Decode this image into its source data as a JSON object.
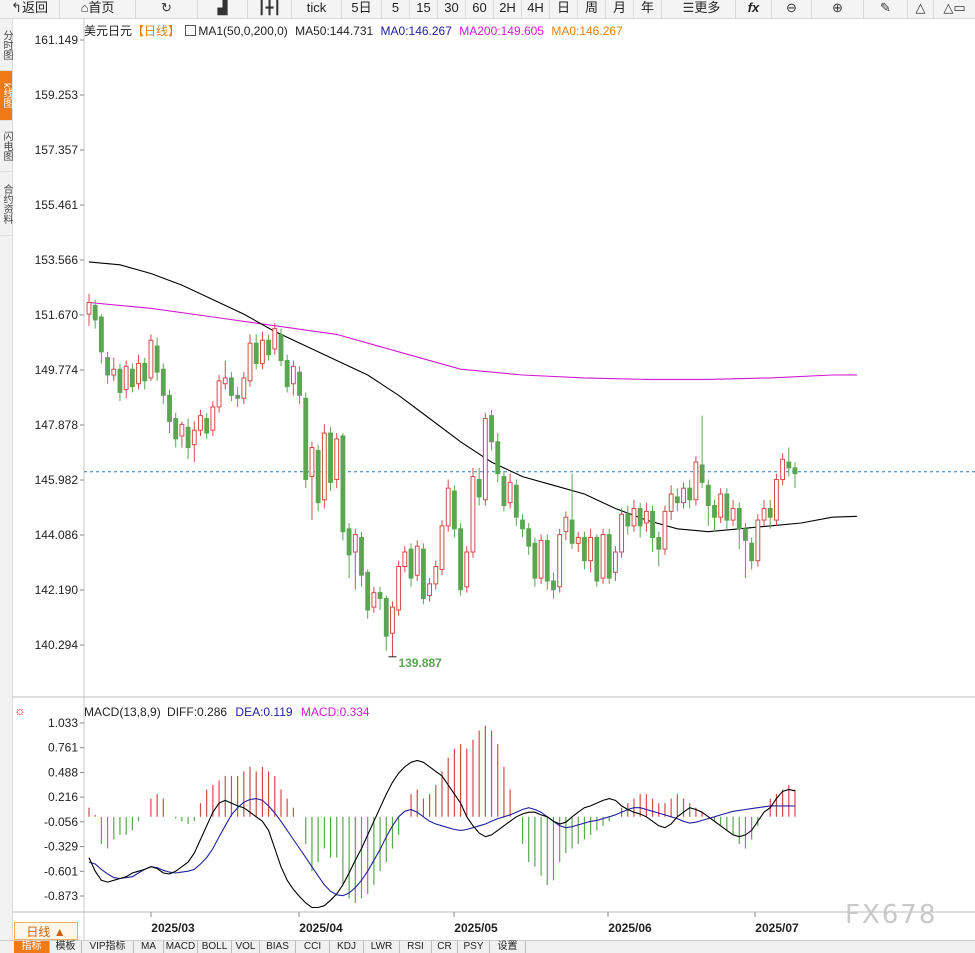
{
  "toolbar": {
    "back": "返回",
    "home": "首页",
    "tick": "tick",
    "periods": [
      "5日",
      "5",
      "15",
      "30",
      "60",
      "2H",
      "4H",
      "日",
      "周",
      "月",
      "年"
    ],
    "more": "更多",
    "fx": "fx"
  },
  "left_tabs": [
    {
      "label": "分时图",
      "active": false
    },
    {
      "label": "k线图",
      "active": true
    },
    {
      "label": "闪电图",
      "active": false
    },
    {
      "label": "合约资料",
      "active": false
    }
  ],
  "legend": {
    "name": "美元日元",
    "period": "【日线】",
    "ma_head": "MA1(50,0,200,0)",
    "ma50": "MA50:144.731",
    "ma0a": "MA0:146.267",
    "ma200": "MA200:149.605",
    "ma0b": "MA0:146.267"
  },
  "macd_legend": {
    "head": "MACD(13,8,9)",
    "diff": "DIFF:0.286",
    "dea": "DEA:0.119",
    "macd": "MACD:0.334"
  },
  "low_label": "139.887",
  "period_button": "日线 ▲",
  "bottom_tabs": [
    "指标",
    "模板",
    "VIP指标",
    "MA",
    "MACD",
    "BOLL",
    "VOL",
    "BIAS",
    "CCI",
    "KDJ",
    "LWR",
    "RSI",
    "CR",
    "PSY",
    "设置"
  ],
  "watermark": "FX678",
  "colors": {
    "up": "#d24b4b",
    "down": "#5aa651",
    "ma50": "#000000",
    "ma200": "#d21ad2",
    "ref": "#2a7fb0",
    "dea": "#2020a0"
  },
  "chart_data": [
    {
      "type": "candlestick",
      "yticks": [
        "161.149",
        "159.253",
        "157.357",
        "155.461",
        "153.566",
        "151.670",
        "149.774",
        "147.878",
        "145.982",
        "144.086",
        "142.190",
        "140.294"
      ],
      "ylim": [
        139.2,
        161.9
      ],
      "xlabels": [
        "2025/03",
        "2025/04",
        "2025/05",
        "2025/06",
        "2025/07"
      ],
      "reference_line": 146.267,
      "low": 139.887,
      "ma50": [
        [
          0,
          153.5
        ],
        [
          5,
          153.4
        ],
        [
          10,
          153.1
        ],
        [
          15,
          152.7
        ],
        [
          20,
          152.2
        ],
        [
          25,
          151.7
        ],
        [
          30,
          151.1
        ],
        [
          35,
          150.6
        ],
        [
          40,
          150.1
        ],
        [
          45,
          149.6
        ],
        [
          50,
          148.9
        ],
        [
          55,
          148.1
        ],
        [
          60,
          147.3
        ],
        [
          65,
          146.6
        ],
        [
          70,
          146.1
        ],
        [
          75,
          145.8
        ],
        [
          80,
          145.5
        ],
        [
          85,
          145.0
        ],
        [
          90,
          144.6
        ],
        [
          95,
          144.3
        ],
        [
          100,
          144.2
        ],
        [
          105,
          144.3
        ],
        [
          110,
          144.4
        ],
        [
          115,
          144.5
        ],
        [
          120,
          144.7
        ],
        [
          124,
          144.73
        ]
      ],
      "ma200": [
        [
          0,
          152.1
        ],
        [
          10,
          151.9
        ],
        [
          20,
          151.6
        ],
        [
          30,
          151.3
        ],
        [
          40,
          151.0
        ],
        [
          50,
          150.4
        ],
        [
          60,
          149.8
        ],
        [
          70,
          149.6
        ],
        [
          80,
          149.5
        ],
        [
          90,
          149.45
        ],
        [
          100,
          149.45
        ],
        [
          110,
          149.5
        ],
        [
          120,
          149.6
        ],
        [
          124,
          149.605
        ]
      ],
      "candles": [
        [
          151.7,
          152.1,
          152.4,
          151.3
        ],
        [
          152.0,
          151.5,
          152.2,
          151.2
        ],
        [
          151.6,
          150.4,
          151.7,
          150.0
        ],
        [
          150.2,
          149.6,
          150.4,
          149.3
        ],
        [
          149.6,
          149.8,
          150.2,
          149.4
        ],
        [
          149.8,
          149.0,
          150.0,
          148.7
        ],
        [
          149.1,
          149.9,
          150.1,
          148.8
        ],
        [
          149.8,
          149.2,
          150.0,
          149.0
        ],
        [
          149.3,
          150.0,
          150.3,
          149.1
        ],
        [
          150.0,
          149.4,
          150.2,
          149.1
        ],
        [
          149.5,
          150.8,
          151.0,
          149.4
        ],
        [
          150.6,
          149.7,
          150.9,
          149.4
        ],
        [
          149.8,
          148.9,
          150.0,
          148.6
        ],
        [
          148.9,
          148.0,
          149.1,
          147.6
        ],
        [
          148.1,
          147.4,
          148.3,
          147.1
        ],
        [
          147.5,
          147.9,
          148.0,
          147.1
        ],
        [
          147.8,
          147.1,
          148.1,
          146.7
        ],
        [
          147.2,
          147.7,
          148.0,
          146.6
        ],
        [
          147.7,
          148.2,
          148.4,
          147.5
        ],
        [
          148.1,
          147.6,
          148.3,
          147.4
        ],
        [
          147.7,
          148.5,
          148.7,
          147.5
        ],
        [
          148.5,
          149.4,
          149.6,
          148.3
        ],
        [
          149.3,
          149.5,
          150.1,
          149.1
        ],
        [
          149.5,
          148.9,
          149.7,
          148.7
        ],
        [
          148.9,
          148.8,
          149.2,
          148.5
        ],
        [
          148.8,
          149.5,
          149.7,
          148.6
        ],
        [
          149.4,
          150.7,
          151.0,
          149.2
        ],
        [
          150.7,
          150.0,
          151.0,
          149.8
        ],
        [
          150.0,
          150.8,
          151.1,
          149.8
        ],
        [
          150.8,
          150.3,
          151.0,
          150.1
        ],
        [
          150.5,
          151.2,
          151.4,
          150.3
        ],
        [
          151.0,
          150.1,
          151.2,
          149.9
        ],
        [
          150.1,
          149.2,
          150.3,
          149.0
        ],
        [
          149.3,
          149.9,
          150.1,
          148.9
        ],
        [
          149.7,
          148.9,
          149.9,
          148.6
        ],
        [
          148.8,
          146.0,
          149.0,
          145.7
        ],
        [
          146.1,
          147.1,
          147.3,
          144.6
        ],
        [
          147.0,
          145.2,
          147.2,
          144.9
        ],
        [
          145.3,
          147.6,
          147.9,
          145.0
        ],
        [
          147.6,
          145.9,
          147.8,
          145.6
        ],
        [
          146.0,
          147.4,
          147.6,
          145.7
        ],
        [
          147.5,
          144.2,
          147.6,
          143.9
        ],
        [
          144.3,
          143.4,
          144.5,
          142.6
        ],
        [
          143.5,
          144.1,
          144.3,
          142.2
        ],
        [
          144.0,
          142.7,
          144.2,
          142.3
        ],
        [
          142.8,
          141.5,
          142.9,
          141.2
        ],
        [
          141.6,
          142.1,
          142.3,
          141.4
        ],
        [
          142.1,
          141.9,
          142.3,
          141.5
        ],
        [
          141.9,
          140.6,
          142.0,
          140.1
        ],
        [
          140.7,
          141.6,
          141.8,
          139.887
        ],
        [
          141.5,
          143.0,
          143.2,
          141.3
        ],
        [
          143.0,
          143.5,
          143.7,
          142.8
        ],
        [
          143.6,
          142.6,
          143.8,
          142.3
        ],
        [
          142.7,
          143.7,
          143.9,
          142.5
        ],
        [
          143.6,
          141.9,
          143.8,
          141.7
        ],
        [
          142.0,
          142.4,
          142.6,
          141.8
        ],
        [
          142.4,
          143.0,
          143.2,
          142.2
        ],
        [
          142.9,
          144.4,
          144.6,
          142.7
        ],
        [
          144.4,
          145.7,
          146.0,
          144.2
        ],
        [
          145.6,
          144.3,
          145.8,
          144.0
        ],
        [
          144.3,
          142.2,
          144.5,
          142.0
        ],
        [
          142.3,
          143.5,
          143.7,
          142.1
        ],
        [
          143.5,
          146.1,
          146.4,
          143.3
        ],
        [
          146.0,
          145.4,
          146.4,
          145.1
        ],
        [
          145.3,
          148.1,
          148.3,
          145.1
        ],
        [
          148.2,
          147.3,
          148.4,
          147.0
        ],
        [
          147.3,
          146.2,
          147.6,
          145.9
        ],
        [
          146.1,
          145.1,
          146.3,
          144.9
        ],
        [
          145.2,
          145.9,
          146.2,
          145.0
        ],
        [
          145.8,
          144.7,
          146.0,
          144.4
        ],
        [
          144.6,
          144.3,
          144.8,
          144.0
        ],
        [
          144.3,
          143.7,
          144.5,
          143.4
        ],
        [
          143.8,
          142.6,
          144.0,
          142.3
        ],
        [
          142.6,
          143.9,
          144.1,
          142.4
        ],
        [
          143.9,
          142.5,
          144.1,
          142.2
        ],
        [
          142.5,
          142.2,
          142.8,
          141.9
        ],
        [
          142.3,
          144.1,
          144.3,
          142.1
        ],
        [
          144.2,
          144.7,
          144.9,
          143.9
        ],
        [
          144.6,
          143.8,
          146.2,
          143.6
        ],
        [
          143.8,
          144.0,
          144.2,
          143.5
        ],
        [
          144.0,
          143.2,
          144.2,
          142.9
        ],
        [
          143.2,
          144.0,
          144.3,
          142.8
        ],
        [
          144.0,
          142.5,
          144.1,
          142.3
        ],
        [
          142.6,
          144.1,
          144.3,
          142.4
        ],
        [
          144.1,
          142.6,
          144.3,
          142.4
        ],
        [
          142.8,
          143.5,
          143.7,
          142.5
        ],
        [
          143.5,
          144.8,
          145.0,
          143.3
        ],
        [
          144.8,
          144.4,
          145.1,
          144.1
        ],
        [
          144.4,
          145.0,
          145.3,
          144.2
        ],
        [
          145.0,
          144.4,
          145.2,
          144.0
        ],
        [
          144.5,
          144.9,
          145.2,
          144.2
        ],
        [
          144.9,
          144.0,
          145.1,
          143.5
        ],
        [
          144.0,
          143.6,
          144.2,
          143.0
        ],
        [
          143.6,
          144.9,
          145.1,
          143.4
        ],
        [
          144.9,
          145.5,
          145.8,
          144.6
        ],
        [
          145.4,
          145.2,
          145.7,
          144.9
        ],
        [
          145.2,
          145.7,
          145.9,
          145.0
        ],
        [
          145.7,
          145.3,
          146.0,
          145.0
        ],
        [
          145.3,
          146.6,
          146.8,
          145.1
        ],
        [
          146.5,
          145.9,
          148.2,
          145.7
        ],
        [
          145.8,
          145.1,
          146.0,
          144.4
        ],
        [
          145.1,
          144.7,
          145.3,
          144.2
        ],
        [
          144.7,
          145.5,
          145.7,
          144.5
        ],
        [
          145.5,
          144.6,
          145.7,
          144.3
        ],
        [
          144.6,
          145.0,
          145.3,
          144.4
        ],
        [
          145.0,
          144.3,
          145.2,
          143.6
        ],
        [
          144.3,
          143.9,
          144.5,
          142.6
        ],
        [
          143.8,
          143.2,
          144.0,
          142.9
        ],
        [
          143.2,
          144.6,
          144.8,
          143.0
        ],
        [
          144.6,
          145.0,
          145.3,
          144.4
        ],
        [
          145.0,
          144.7,
          145.3,
          144.3
        ],
        [
          144.6,
          146.0,
          146.2,
          144.4
        ],
        [
          146.0,
          146.7,
          146.9,
          145.8
        ],
        [
          146.6,
          146.4,
          147.1,
          146.1
        ],
        [
          146.4,
          146.2,
          146.6,
          145.7
        ]
      ]
    },
    {
      "type": "macd",
      "yticks": [
        "1.033",
        "0.761",
        "0.488",
        "0.216",
        "-0.056",
        "-0.329",
        "-0.601",
        "-0.873"
      ],
      "ylim": [
        -1.09,
        1.04
      ],
      "hist": [
        0.1,
        0.02,
        -0.3,
        -0.35,
        -0.25,
        -0.2,
        -0.2,
        -0.15,
        -0.05,
        0.0,
        0.2,
        0.25,
        0.2,
        0.0,
        -0.02,
        -0.05,
        -0.08,
        -0.05,
        0.15,
        0.3,
        0.35,
        0.4,
        0.45,
        0.45,
        0.45,
        0.5,
        0.55,
        0.5,
        0.55,
        0.5,
        0.45,
        0.3,
        0.2,
        0.1,
        0.0,
        -0.3,
        -0.6,
        -0.5,
        -0.35,
        -0.45,
        -0.45,
        -0.75,
        -0.9,
        -0.95,
        -0.9,
        -0.85,
        -0.75,
        -0.6,
        -0.5,
        -0.35,
        -0.2,
        0.0,
        0.25,
        0.3,
        0.2,
        0.25,
        0.35,
        0.5,
        0.65,
        0.75,
        0.8,
        0.75,
        0.85,
        0.95,
        1.0,
        0.95,
        0.8,
        0.55,
        0.3,
        0.0,
        -0.3,
        -0.5,
        -0.55,
        -0.65,
        -0.75,
        -0.7,
        -0.5,
        -0.4,
        -0.35,
        -0.3,
        -0.25,
        -0.2,
        -0.15,
        -0.1,
        -0.05,
        0.0,
        0.1,
        0.15,
        0.2,
        0.25,
        0.25,
        0.2,
        0.15,
        0.15,
        0.2,
        0.25,
        0.2,
        0.15,
        0.1,
        0.05,
        0.0,
        -0.05,
        -0.1,
        -0.15,
        -0.2,
        -0.3,
        -0.35,
        -0.25,
        -0.1,
        0.0,
        0.2,
        0.25,
        0.3,
        0.35,
        0.3
      ],
      "dea": [
        -0.5,
        -0.52,
        -0.58,
        -0.63,
        -0.67,
        -0.68,
        -0.67,
        -0.66,
        -0.62,
        -0.58,
        -0.55,
        -0.56,
        -0.59,
        -0.61,
        -0.62,
        -0.61,
        -0.6,
        -0.58,
        -0.52,
        -0.45,
        -0.35,
        -0.22,
        -0.1,
        0.02,
        0.1,
        0.16,
        0.19,
        0.2,
        0.18,
        0.12,
        0.04,
        -0.05,
        -0.15,
        -0.25,
        -0.35,
        -0.45,
        -0.55,
        -0.65,
        -0.75,
        -0.82,
        -0.86,
        -0.87,
        -0.84,
        -0.78,
        -0.7,
        -0.6,
        -0.48,
        -0.36,
        -0.22,
        -0.1,
        0.0,
        0.06,
        0.08,
        0.05,
        0.0,
        -0.05,
        -0.08,
        -0.1,
        -0.12,
        -0.14,
        -0.15,
        -0.14,
        -0.12,
        -0.1,
        -0.08,
        -0.05,
        -0.02,
        0.0,
        0.02,
        0.05,
        0.08,
        0.1,
        0.08,
        0.05,
        0.0,
        -0.05,
        -0.1,
        -0.12,
        -0.11,
        -0.09,
        -0.07,
        -0.05,
        -0.04,
        -0.02,
        0.0,
        0.02,
        0.05,
        0.08,
        0.1,
        0.1,
        0.08,
        0.06,
        0.04,
        0.02,
        0.0,
        -0.02,
        -0.05,
        -0.07,
        -0.06,
        -0.04,
        -0.02,
        0.0,
        0.02,
        0.04,
        0.06,
        0.07,
        0.08,
        0.09,
        0.1,
        0.11,
        0.12,
        0.12,
        0.12,
        0.12,
        0.119
      ],
      "diff": [
        -0.45,
        -0.6,
        -0.7,
        -0.72,
        -0.7,
        -0.68,
        -0.66,
        -0.62,
        -0.6,
        -0.58,
        -0.55,
        -0.57,
        -0.62,
        -0.63,
        -0.6,
        -0.55,
        -0.5,
        -0.4,
        -0.25,
        -0.1,
        0.05,
        0.15,
        0.18,
        0.15,
        0.12,
        0.1,
        0.05,
        0.0,
        -0.05,
        -0.15,
        -0.35,
        -0.55,
        -0.7,
        -0.8,
        -0.88,
        -0.95,
        -1.0,
        -1.0,
        -0.98,
        -0.92,
        -0.85,
        -0.75,
        -0.62,
        -0.48,
        -0.35,
        -0.2,
        -0.05,
        0.1,
        0.25,
        0.38,
        0.48,
        0.55,
        0.6,
        0.62,
        0.6,
        0.55,
        0.5,
        0.45,
        0.35,
        0.25,
        0.15,
        0.0,
        -0.1,
        -0.18,
        -0.22,
        -0.2,
        -0.15,
        -0.1,
        -0.05,
        0.0,
        0.03,
        0.05,
        0.05,
        0.02,
        0.0,
        -0.05,
        -0.08,
        -0.06,
        0.0,
        0.05,
        0.1,
        0.12,
        0.15,
        0.18,
        0.2,
        0.18,
        0.12,
        0.08,
        0.05,
        0.03,
        0.0,
        -0.05,
        -0.1,
        -0.12,
        -0.08,
        0.0,
        0.05,
        0.1,
        0.08,
        0.05,
        0.0,
        -0.05,
        -0.1,
        -0.15,
        -0.2,
        -0.22,
        -0.2,
        -0.15,
        -0.05,
        0.05,
        0.1,
        0.2,
        0.28,
        0.3,
        0.286
      ]
    }
  ]
}
